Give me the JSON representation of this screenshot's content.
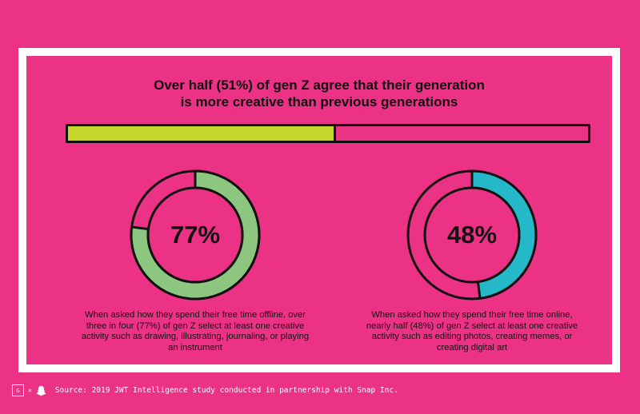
{
  "title": {
    "line1": "Over half (51%) of gen Z agree that their generation",
    "line2": "is more creative than previous generations"
  },
  "colors": {
    "background": "#ec3284",
    "bar_fill": "#c6d62a",
    "offline_ring": "#8dc67e",
    "online_ring": "#25b8c8",
    "outline": "#111111"
  },
  "chart_data": [
    {
      "type": "bar",
      "title": "Over half (51%) of gen Z agree that their generation is more creative than previous generations",
      "values": [
        51
      ],
      "max": 100
    },
    {
      "type": "pie",
      "variant": "donut",
      "center_label": "77%",
      "values": [
        77,
        23
      ],
      "caption": "When asked how they spend their free time offline, over three in four (77%) of gen Z select at least one creative activity such as drawing, illustrating, journaling, or playing an instrument"
    },
    {
      "type": "pie",
      "variant": "donut",
      "center_label": "48%",
      "values": [
        48,
        52
      ],
      "caption": "When asked how they spend their free time online, nearly half (48%) of gen Z select at least one creative activity such as editing photos, creating memes, or creating digital art"
    }
  ],
  "offline": {
    "percent_label": "77%",
    "caption_lines": [
      "When asked how they spend their free time offline, over",
      "three in four (77%) of gen Z select at least one creative",
      "activity such as drawing, illustrating, journaling, or playing",
      "an instrument"
    ]
  },
  "online": {
    "percent_label": "48%",
    "caption_lines": [
      "When asked how they spend their free time online,",
      "nearly half (48%) of gen Z select at least one creative",
      "activity such as editing photos, creating memes, or",
      "creating digital art"
    ]
  },
  "footer": {
    "logo_text": "G",
    "times": "×",
    "ghost_icon": "snapchat-ghost-icon",
    "source": "Source: 2019 JWT Intelligence study conducted in partnership with Snap Inc."
  }
}
